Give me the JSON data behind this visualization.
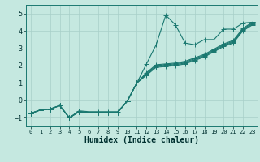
{
  "xlabel": "Humidex (Indice chaleur)",
  "background_color": "#c5e8e0",
  "grid_color": "#a8cfc8",
  "line_color": "#1a7870",
  "xlim": [
    -0.5,
    23.5
  ],
  "ylim": [
    -1.5,
    5.5
  ],
  "xticks": [
    0,
    1,
    2,
    3,
    4,
    5,
    6,
    7,
    8,
    9,
    10,
    11,
    12,
    13,
    14,
    15,
    16,
    17,
    18,
    19,
    20,
    21,
    22,
    23
  ],
  "yticks": [
    -1,
    0,
    1,
    2,
    3,
    4,
    5
  ],
  "lines": [
    {
      "x": [
        0,
        1,
        2,
        3,
        4,
        5,
        6,
        7,
        8,
        9,
        10,
        11,
        12,
        13,
        14,
        15,
        16,
        17,
        18,
        19,
        20,
        21,
        22,
        23
      ],
      "y": [
        -0.75,
        -0.55,
        -0.5,
        -0.3,
        -1.0,
        -0.6,
        -0.65,
        -0.65,
        -0.65,
        -0.65,
        -0.05,
        1.0,
        2.1,
        3.2,
        4.9,
        4.35,
        3.3,
        3.2,
        3.5,
        3.5,
        4.1,
        4.1,
        4.45,
        4.5
      ]
    },
    {
      "x": [
        0,
        1,
        2,
        3,
        4,
        5,
        6,
        7,
        8,
        9,
        10,
        11,
        12,
        13,
        14,
        15,
        16,
        17,
        18,
        19,
        20,
        21,
        22,
        23
      ],
      "y": [
        -0.75,
        -0.55,
        -0.5,
        -0.3,
        -1.0,
        -0.65,
        -0.7,
        -0.7,
        -0.7,
        -0.7,
        -0.05,
        1.0,
        1.6,
        2.05,
        2.1,
        2.15,
        2.25,
        2.45,
        2.65,
        2.95,
        3.25,
        3.45,
        4.15,
        4.5
      ]
    },
    {
      "x": [
        0,
        1,
        2,
        3,
        4,
        5,
        6,
        7,
        8,
        9,
        10,
        11,
        12,
        13,
        14,
        15,
        16,
        17,
        18,
        19,
        20,
        21,
        22,
        23
      ],
      "y": [
        -0.75,
        -0.55,
        -0.5,
        -0.3,
        -1.0,
        -0.65,
        -0.7,
        -0.7,
        -0.7,
        -0.7,
        -0.05,
        1.0,
        1.55,
        2.0,
        2.05,
        2.1,
        2.2,
        2.4,
        2.6,
        2.9,
        3.2,
        3.4,
        4.1,
        4.45
      ]
    },
    {
      "x": [
        0,
        1,
        2,
        3,
        4,
        5,
        6,
        7,
        8,
        9,
        10,
        11,
        12,
        13,
        14,
        15,
        16,
        17,
        18,
        19,
        20,
        21,
        22,
        23
      ],
      "y": [
        -0.75,
        -0.55,
        -0.5,
        -0.3,
        -1.0,
        -0.65,
        -0.7,
        -0.7,
        -0.7,
        -0.7,
        -0.05,
        1.0,
        1.5,
        1.95,
        2.0,
        2.05,
        2.15,
        2.35,
        2.55,
        2.85,
        3.15,
        3.35,
        4.05,
        4.4
      ]
    },
    {
      "x": [
        0,
        1,
        2,
        3,
        4,
        5,
        6,
        7,
        8,
        9,
        10,
        11,
        12,
        13,
        14,
        15,
        16,
        17,
        18,
        19,
        20,
        21,
        22,
        23
      ],
      "y": [
        -0.75,
        -0.55,
        -0.5,
        -0.3,
        -1.0,
        -0.65,
        -0.7,
        -0.7,
        -0.7,
        -0.7,
        -0.05,
        1.0,
        1.45,
        1.9,
        1.95,
        2.0,
        2.1,
        2.3,
        2.5,
        2.8,
        3.1,
        3.3,
        4.0,
        4.35
      ]
    }
  ],
  "markersize": 2.0,
  "linewidth": 0.8,
  "xlabel_fontsize": 7,
  "tick_fontsize": 5.5
}
